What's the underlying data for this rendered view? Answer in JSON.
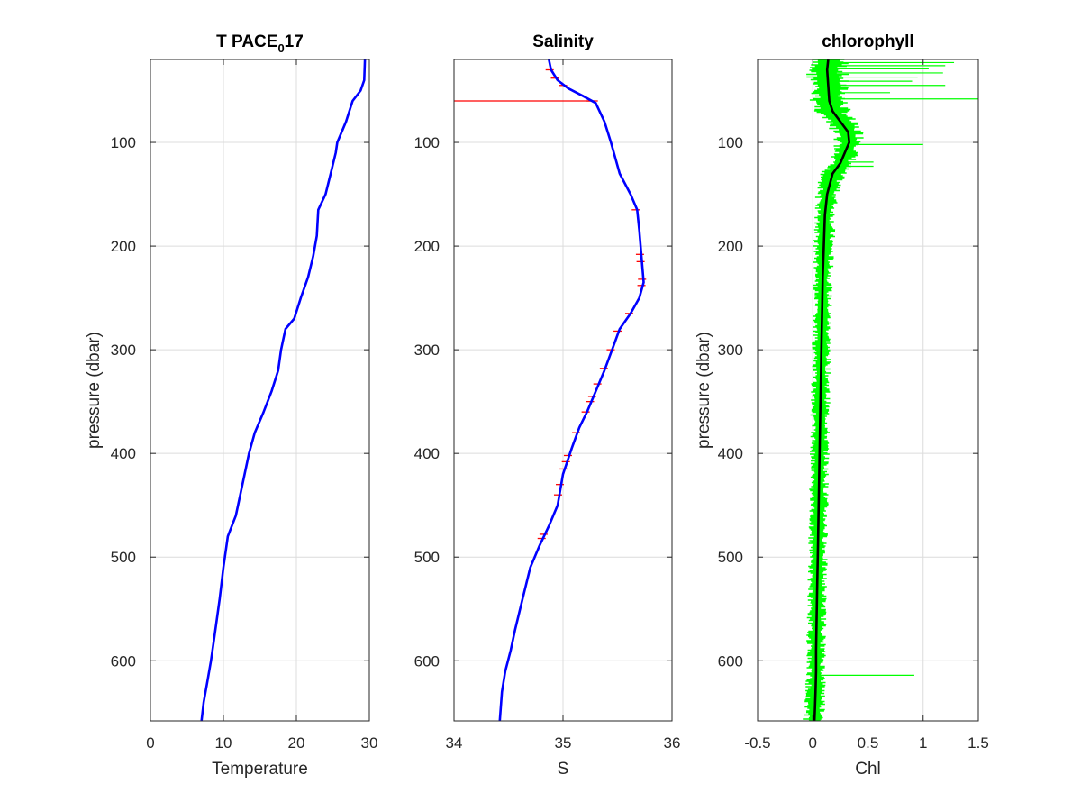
{
  "chart_data": [
    {
      "type": "line",
      "title": "T PACE",
      "title_sub": "0",
      "title_tail": "17",
      "xlabel": "Temperature",
      "ylabel": "pressure (dbar)",
      "xlim": [
        0,
        30
      ],
      "ylim": [
        20,
        658
      ],
      "y_reversed": true,
      "grid": true,
      "xticks": [
        0,
        10,
        20,
        30
      ],
      "yticks": [
        100,
        200,
        300,
        400,
        500,
        600
      ],
      "series": [
        {
          "color": "#0000ff",
          "x": [
            29.4,
            29.3,
            28.8,
            27.7,
            26.8,
            25.6,
            25.4,
            24.7,
            24.0,
            23.0,
            22.8,
            22.3,
            21.6,
            20.6,
            19.7,
            18.5,
            17.9,
            17.5,
            16.6,
            15.5,
            14.3,
            13.5,
            12.6,
            11.7,
            10.6,
            10.0,
            9.5,
            9.1,
            8.7,
            8.3,
            7.8,
            7.3,
            7.0
          ],
          "y": [
            20,
            40,
            50,
            60,
            80,
            100,
            110,
            130,
            150,
            165,
            190,
            210,
            230,
            250,
            270,
            280,
            300,
            320,
            340,
            360,
            380,
            400,
            430,
            460,
            480,
            510,
            540,
            560,
            580,
            600,
            620,
            640,
            658
          ]
        }
      ]
    },
    {
      "type": "line",
      "title": "Salinity",
      "xlabel": "S",
      "xlim": [
        34,
        36
      ],
      "ylim": [
        20,
        658
      ],
      "y_reversed": true,
      "grid": true,
      "xticks": [
        34,
        35,
        36
      ],
      "yticks": [
        100,
        200,
        300,
        400,
        500,
        600
      ],
      "series": [
        {
          "color": "#0000ff",
          "x": [
            34.87,
            34.89,
            34.95,
            35.05,
            35.18,
            35.3,
            35.38,
            35.44,
            35.52,
            35.62,
            35.68,
            35.7,
            35.72,
            35.74,
            35.7,
            35.62,
            35.52,
            35.45,
            35.38,
            35.3,
            35.22,
            35.15,
            35.08,
            35.0,
            34.95,
            34.87,
            34.78,
            34.7,
            34.63,
            34.56,
            34.52,
            34.47,
            34.44,
            34.42
          ],
          "y": [
            20,
            30,
            40,
            48,
            55,
            62,
            80,
            100,
            130,
            150,
            165,
            185,
            210,
            235,
            250,
            265,
            280,
            300,
            320,
            340,
            360,
            375,
            395,
            420,
            450,
            470,
            490,
            510,
            540,
            570,
            590,
            610,
            630,
            658
          ]
        }
      ],
      "markers": {
        "color": "#ff0000",
        "y": [
          30,
          38,
          45,
          60,
          165,
          208,
          215,
          232,
          238,
          265,
          282,
          300,
          318,
          333,
          345,
          350,
          360,
          380,
          402,
          408,
          415,
          430,
          440,
          478,
          482
        ],
        "spike": {
          "y": 60,
          "x_from": 34,
          "x_to": 35.32
        }
      }
    },
    {
      "type": "line",
      "title": "chlorophyll",
      "xlabel": "Chl",
      "ylabel": "pressure (dbar)",
      "xlim": [
        -0.5,
        1.5
      ],
      "ylim": [
        20,
        658
      ],
      "y_reversed": true,
      "grid": true,
      "xticks": [
        -0.5,
        0,
        0.5,
        1,
        1.5
      ],
      "xtick_labels": [
        "-0.5",
        "0",
        "0.5",
        "1",
        "1.5"
      ],
      "yticks": [
        100,
        200,
        300,
        400,
        500,
        600
      ],
      "series": [
        {
          "name": "",
          "color": "#000000",
          "x": [
            0.14,
            0.13,
            0.14,
            0.15,
            0.18,
            0.25,
            0.32,
            0.33,
            0.29,
            0.25,
            0.18,
            0.13,
            0.11,
            0.1,
            0.09,
            0.085,
            0.08,
            0.075,
            0.07,
            0.065,
            0.06,
            0.055,
            0.05,
            0.045,
            0.04,
            0.035,
            0.03,
            0.03,
            0.025,
            0.02,
            0.015
          ],
          "y": [
            20,
            30,
            45,
            60,
            70,
            80,
            90,
            100,
            110,
            120,
            130,
            150,
            170,
            200,
            230,
            260,
            290,
            320,
            350,
            380,
            410,
            440,
            470,
            500,
            530,
            560,
            590,
            610,
            630,
            645,
            658
          ]
        }
      ],
      "spread": {
        "color": "#00ff00",
        "half_width": [
          0.2,
          0.2,
          0.19,
          0.18,
          0.17,
          0.16,
          0.15,
          0.15,
          0.14,
          0.13,
          0.12,
          0.11,
          0.1,
          0.1,
          0.09,
          0.09,
          0.09,
          0.09,
          0.09,
          0.09,
          0.09,
          0.09,
          0.09,
          0.09,
          0.09,
          0.09,
          0.09,
          0.09,
          0.1,
          0.1,
          0.11
        ],
        "spikes": [
          {
            "y": 23,
            "x": 1.28
          },
          {
            "y": 26,
            "x": 1.2
          },
          {
            "y": 29,
            "x": 1.05
          },
          {
            "y": 33,
            "x": 1.18
          },
          {
            "y": 37,
            "x": 0.95
          },
          {
            "y": 41,
            "x": 0.9
          },
          {
            "y": 45,
            "x": 1.2
          },
          {
            "y": 52,
            "x": 0.7
          },
          {
            "y": 58,
            "x": 1.52
          },
          {
            "y": 102,
            "x": 1.0
          },
          {
            "y": 119,
            "x": 0.55
          },
          {
            "y": 123,
            "x": 0.55
          },
          {
            "y": 614,
            "x": 0.92
          }
        ]
      }
    }
  ]
}
